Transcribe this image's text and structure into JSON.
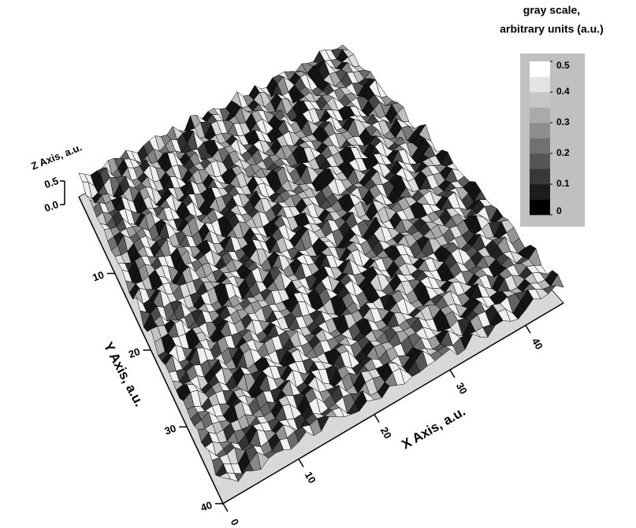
{
  "chart_data": {
    "type": "surface",
    "xlabel": "X Axis, a.u.",
    "ylabel": "Y Axis, a.u.",
    "zlabel": "Z Axis, a.u.",
    "xlim": [
      0,
      45
    ],
    "xticks": [
      0,
      10,
      20,
      30,
      40
    ],
    "ylim": [
      0,
      40
    ],
    "yticks": [
      10,
      20,
      30,
      40
    ],
    "zlim": [
      0,
      0.5
    ],
    "zticks": [
      {
        "value": 0,
        "label": "0.0"
      },
      0.5
    ],
    "colorbar_title": [
      "gray scale,",
      "arbitrary units (a.u.)"
    ],
    "colorbar_lim": [
      0,
      0.5
    ],
    "colorbar_ticks": [
      0,
      0.1,
      0.2,
      0.3,
      0.4,
      0.5
    ],
    "colorbar_colors": [
      "#000000",
      "#1c1c1c",
      "#383838",
      "#555555",
      "#717171",
      "#8e8e8e",
      "#aaaaaa",
      "#c6c6c6",
      "#e3e3e3",
      "#ffffff"
    ]
  }
}
